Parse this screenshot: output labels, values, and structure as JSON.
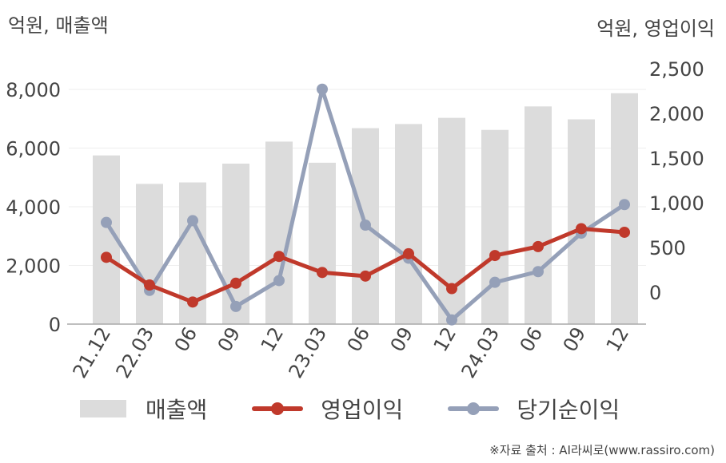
{
  "labels": {
    "left_unit": "억원, 매출액",
    "right_unit": "억원, 영업이익",
    "source": "※자료 출처 : AI라씨로(www.rassiro.com)"
  },
  "legend": {
    "bar": "매출액",
    "line1": "영업이익",
    "line2": "당기순이익"
  },
  "colors": {
    "bar": "#dcdcdc",
    "line1": "#c0392b",
    "line2": "#95a0b8",
    "grid": "#eeeeee",
    "axis": "#aaaaaa",
    "tick": "#444444"
  },
  "chart_data": {
    "type": "bar+line",
    "categories": [
      "21.12",
      "22.03",
      "06",
      "09",
      "12",
      "23.03",
      "06",
      "09",
      "12",
      "24.03",
      "06",
      "09",
      "12"
    ],
    "series": [
      {
        "name": "매출액",
        "type": "bar",
        "axis": "left",
        "values": [
          5750,
          4780,
          4830,
          5470,
          6220,
          5500,
          6680,
          6820,
          7030,
          6620,
          7420,
          6980,
          7870
        ]
      },
      {
        "name": "영업이익",
        "type": "line",
        "axis": "right",
        "values": [
          390,
          80,
          -110,
          100,
          400,
          220,
          180,
          430,
          40,
          410,
          510,
          710,
          670
        ]
      },
      {
        "name": "당기순이익",
        "type": "line",
        "axis": "right",
        "values": [
          780,
          20,
          800,
          -160,
          130,
          2270,
          750,
          380,
          -310,
          110,
          230,
          660,
          980
        ]
      }
    ],
    "y_left": {
      "min": 0,
      "max": 8000,
      "ticks": [
        0,
        2000,
        4000,
        6000,
        8000
      ],
      "tick_labels": [
        "0",
        "2,000",
        "4,000",
        "6,000",
        "8,000"
      ]
    },
    "y_right": {
      "min": -380,
      "max": 2500,
      "ticks": [
        0,
        500,
        1000,
        1500,
        2000,
        2500
      ],
      "tick_labels": [
        "0",
        "500",
        "1,000",
        "1,500",
        "2,000",
        "2,500"
      ]
    },
    "grid": true,
    "legend_position": "bottom"
  }
}
